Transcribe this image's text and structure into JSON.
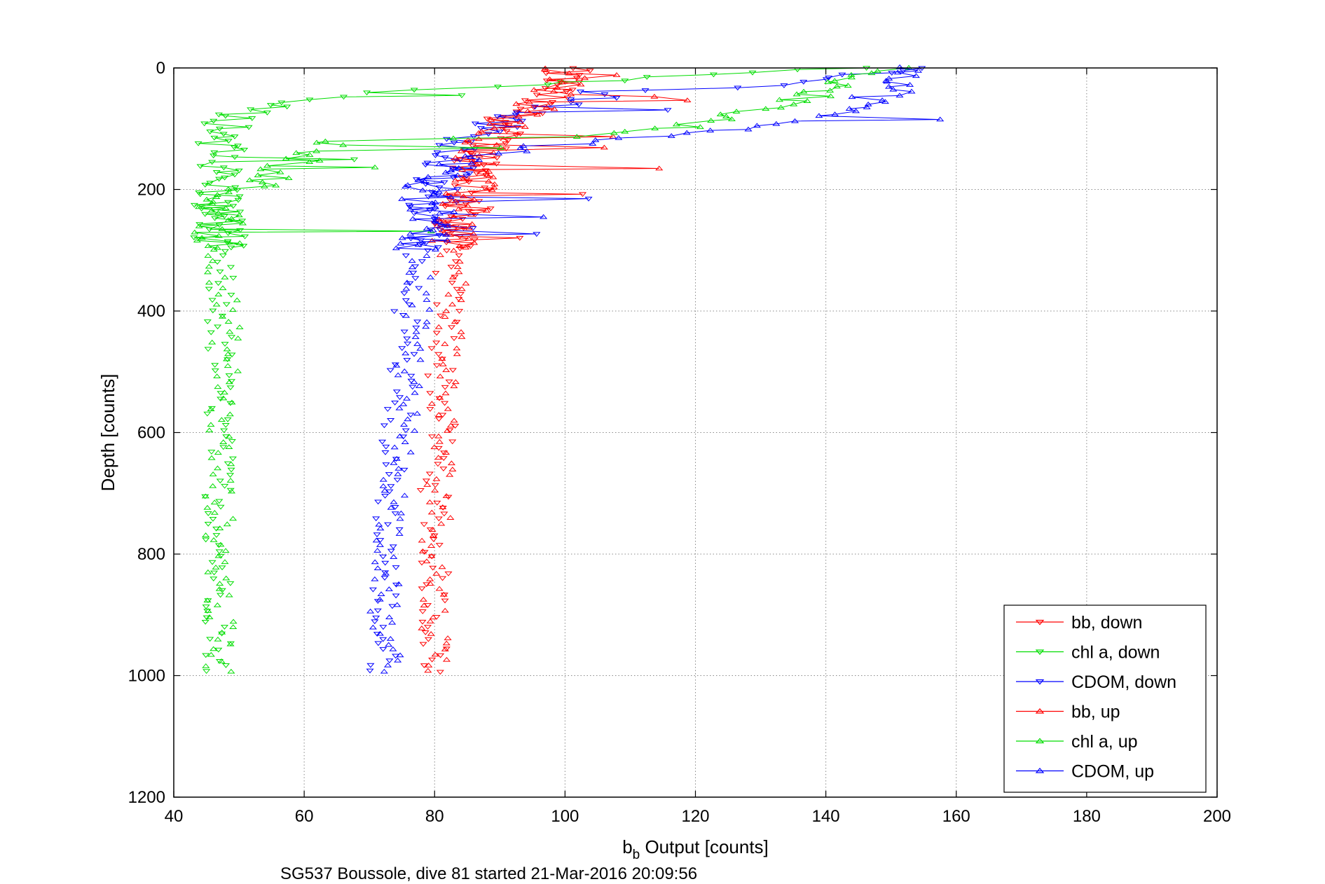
{
  "chart_data": {
    "type": "scatter",
    "xlabel_main": "b",
    "xlabel_sub": "b",
    "xlabel_rest": " Output [counts]",
    "ylabel": "Depth [counts]",
    "footer": "SG537 Boussole, dive 81 started 21-Mar-2016 20:09:56",
    "xlim": [
      40,
      200
    ],
    "ylim": [
      0,
      1200
    ],
    "y_reversed": true,
    "x_ticks": [
      "40",
      "60",
      "80",
      "100",
      "120",
      "140",
      "160",
      "180",
      "200"
    ],
    "y_ticks": [
      "0",
      "200",
      "400",
      "600",
      "800",
      "1000",
      "1200"
    ],
    "grid": true,
    "legend_position": "bottom-right",
    "series": [
      {
        "name": "bb, down",
        "color": "#ff0000",
        "marker": "triangle-down",
        "connected": true,
        "profile": [
          [
            0,
            100
          ],
          [
            30,
            99
          ],
          [
            60,
            95
          ],
          [
            100,
            90
          ],
          [
            150,
            87
          ],
          [
            200,
            86
          ],
          [
            250,
            84
          ],
          [
            300,
            82
          ],
          [
            400,
            82
          ],
          [
            500,
            81
          ],
          [
            600,
            81
          ],
          [
            700,
            80
          ],
          [
            800,
            80
          ],
          [
            900,
            80
          ],
          [
            1000,
            80
          ]
        ]
      },
      {
        "name": "chl a, down",
        "color": "#00dd00",
        "marker": "triangle-down",
        "connected": true,
        "profile": [
          [
            0,
            145
          ],
          [
            25,
            100
          ],
          [
            40,
            70
          ],
          [
            60,
            55
          ],
          [
            75,
            50
          ],
          [
            100,
            48
          ],
          [
            150,
            47
          ],
          [
            200,
            47
          ],
          [
            250,
            47
          ],
          [
            300,
            47
          ],
          [
            400,
            47
          ],
          [
            500,
            47
          ],
          [
            600,
            47
          ],
          [
            700,
            47
          ],
          [
            800,
            47
          ],
          [
            900,
            47
          ],
          [
            1000,
            47
          ]
        ]
      },
      {
        "name": "CDOM, down",
        "color": "#0000ff",
        "marker": "triangle-down",
        "connected": true,
        "profile": [
          [
            0,
            152
          ],
          [
            25,
            140
          ],
          [
            40,
            105
          ],
          [
            80,
            92
          ],
          [
            120,
            85
          ],
          [
            160,
            82
          ],
          [
            200,
            80
          ],
          [
            250,
            79
          ],
          [
            300,
            77
          ],
          [
            400,
            76
          ],
          [
            500,
            75
          ],
          [
            600,
            74
          ],
          [
            700,
            73
          ],
          [
            800,
            73
          ],
          [
            900,
            72
          ],
          [
            1000,
            72
          ]
        ]
      },
      {
        "name": "bb, up",
        "color": "#ff0000",
        "marker": "triangle-up",
        "connected": true,
        "profile": [
          [
            0,
            100
          ],
          [
            30,
            99
          ],
          [
            60,
            96
          ],
          [
            100,
            90
          ],
          [
            150,
            87
          ],
          [
            200,
            85
          ],
          [
            250,
            84
          ],
          [
            300,
            83
          ],
          [
            400,
            83
          ],
          [
            500,
            82
          ],
          [
            600,
            81
          ],
          [
            700,
            81
          ],
          [
            800,
            80
          ],
          [
            900,
            80
          ],
          [
            1000,
            81
          ]
        ]
      },
      {
        "name": "chl a, up",
        "color": "#00dd00",
        "marker": "triangle-up",
        "connected": true,
        "profile": [
          [
            0,
            150
          ],
          [
            40,
            140
          ],
          [
            80,
            125
          ],
          [
            110,
            110
          ],
          [
            120,
            65
          ],
          [
            150,
            60
          ],
          [
            180,
            55
          ],
          [
            210,
            48
          ],
          [
            250,
            47
          ],
          [
            300,
            47
          ],
          [
            400,
            48
          ],
          [
            500,
            48
          ],
          [
            600,
            47
          ],
          [
            700,
            47
          ],
          [
            800,
            47
          ],
          [
            900,
            47
          ],
          [
            1000,
            47
          ]
        ]
      },
      {
        "name": "CDOM, up",
        "color": "#0000ff",
        "marker": "triangle-up",
        "connected": true,
        "profile": [
          [
            0,
            155
          ],
          [
            40,
            150
          ],
          [
            80,
            140
          ],
          [
            100,
            130
          ],
          [
            130,
            95
          ],
          [
            160,
            80
          ],
          [
            200,
            79
          ],
          [
            250,
            79
          ],
          [
            300,
            78
          ],
          [
            400,
            77
          ],
          [
            500,
            76
          ],
          [
            600,
            75
          ],
          [
            700,
            74
          ],
          [
            800,
            73
          ],
          [
            900,
            72
          ],
          [
            1000,
            73
          ]
        ]
      }
    ]
  }
}
